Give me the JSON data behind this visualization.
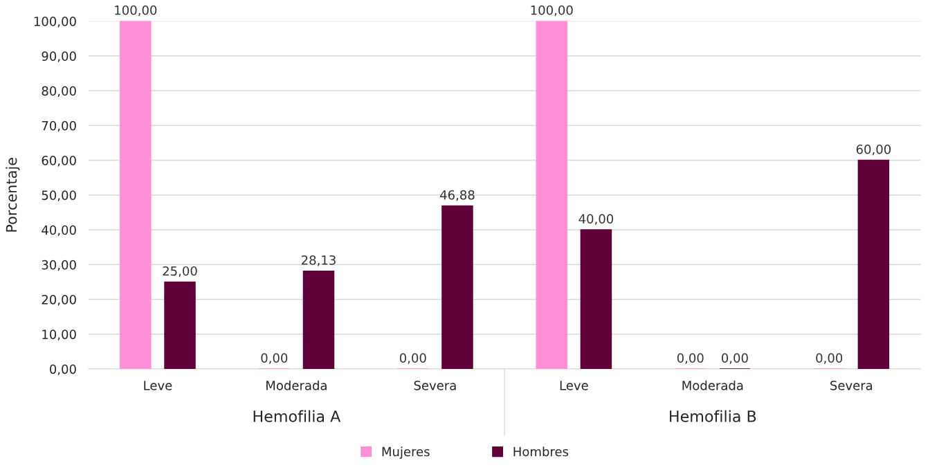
{
  "chart_data": {
    "type": "bar",
    "ylabel": "Porcentaje",
    "categories": [
      "Leve",
      "Moderada",
      "Severa",
      "Leve",
      "Moderada",
      "Severa"
    ],
    "series": [
      {
        "name": "Mujeres",
        "color": "#ff8fd6",
        "values": [
          100,
          0,
          0,
          100,
          0,
          0
        ],
        "value_labels": [
          "100,00",
          "0,00",
          "0,00",
          "100,00",
          "0,00",
          "0,00"
        ]
      },
      {
        "name": "Hombres",
        "color": "#600038",
        "values": [
          25,
          28.13,
          46.88,
          40,
          0,
          60
        ],
        "value_labels": [
          "25,00",
          "28,13",
          "46,88",
          "40,00",
          "0,00",
          "60,00"
        ]
      }
    ],
    "annotations": [
      "Hemofilia A",
      "Hemofilia B"
    ],
    "ylim": [
      0,
      100
    ],
    "yticks": [
      {
        "value": 0,
        "label": "0,00"
      },
      {
        "value": 10,
        "label": "10,00"
      },
      {
        "value": 20,
        "label": "20,00"
      },
      {
        "value": 30,
        "label": "30,00"
      },
      {
        "value": 40,
        "label": "40,00"
      },
      {
        "value": 50,
        "label": "50,00"
      },
      {
        "value": 60,
        "label": "60,00"
      },
      {
        "value": 70,
        "label": "70,00"
      },
      {
        "value": 80,
        "label": "80,00"
      },
      {
        "value": 90,
        "label": "90,00"
      },
      {
        "value": 100,
        "label": "100,00"
      }
    ],
    "grid": "y",
    "legend": "bottom"
  }
}
